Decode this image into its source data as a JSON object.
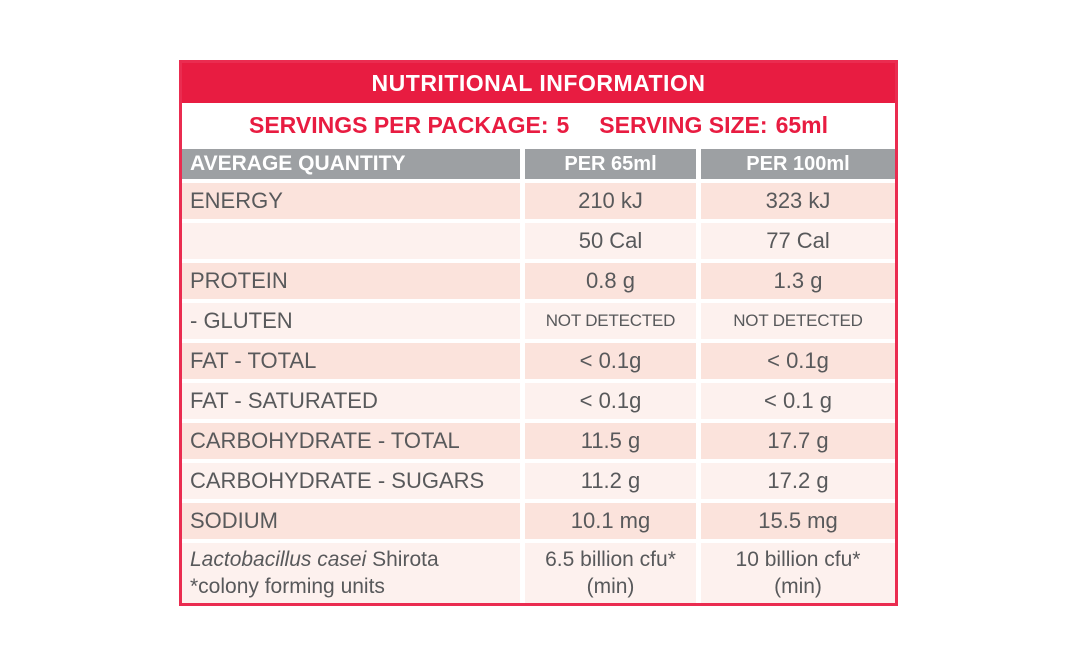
{
  "colors": {
    "red": "#e81c41",
    "border_red": "#ea2c50",
    "gray": "#9da0a3",
    "row_dark": "#fbe3dc",
    "row_light": "#fdf1ee",
    "text_gray": "#58595b"
  },
  "table": {
    "title": "NUTRITIONAL INFORMATION",
    "servings_per_package_label": "SERVINGS PER PACKAGE:",
    "servings_per_package_value": "5",
    "serving_size_label": "SERVING SIZE:",
    "serving_size_value": "65ml",
    "columns": {
      "c1": "AVERAGE QUANTITY",
      "c2": "PER 65ml",
      "c3": "PER 100ml"
    },
    "rows": [
      {
        "label": "ENERGY",
        "per65": "210 kJ",
        "per100": "323 kJ"
      },
      {
        "label": "",
        "per65": "50 Cal",
        "per100": "77 Cal"
      },
      {
        "label": "PROTEIN",
        "per65": "0.8 g",
        "per100": "1.3 g"
      },
      {
        "label": "- GLUTEN",
        "per65": "NOT DETECTED",
        "per100": "NOT DETECTED"
      },
      {
        "label": "FAT - TOTAL",
        "per65": "< 0.1g",
        "per100": "< 0.1g"
      },
      {
        "label": "FAT - SATURATED",
        "per65": "< 0.1g",
        "per100": "< 0.1 g"
      },
      {
        "label": "CARBOHYDRATE - TOTAL",
        "per65": "11.5 g",
        "per100": "17.7 g"
      },
      {
        "label": "CARBOHYDRATE - SUGARS",
        "per65": "11.2 g",
        "per100": "17.2 g"
      },
      {
        "label": "SODIUM",
        "per65": "10.1 mg",
        "per100": "15.5 mg"
      },
      {
        "label_italic": "Lactobacillus casei",
        "label_regular": " Shirota",
        "label_line2": "*colony forming units",
        "per65": "6.5 billion cfu*",
        "per65_line2": "(min)",
        "per100": "10 billion cfu*",
        "per100_line2": "(min)"
      }
    ]
  }
}
